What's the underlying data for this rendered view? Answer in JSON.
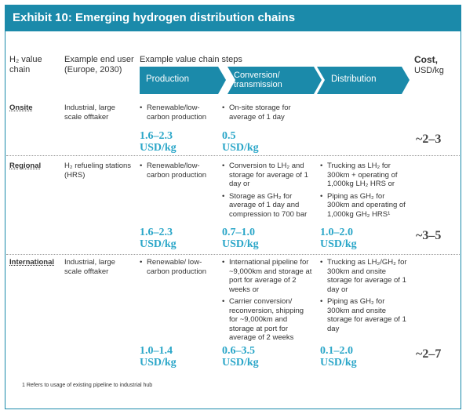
{
  "header": {
    "title": "Exhibit 10: Emerging hydrogen distribution chains"
  },
  "columns": {
    "h2_chain": "H₂ value chain",
    "end_user": "Example end user (Europe, 2030)",
    "steps_label": "Example value chain steps",
    "steps": [
      "Production",
      "Conversion/ transmission",
      "Distribution"
    ],
    "cost": "Cost,",
    "cost_unit": "USD/kg"
  },
  "rows": [
    {
      "name": "Onsite",
      "end_user": "Industrial, large scale offtaker",
      "production": {
        "bullets": [
          "Renewable/low-carbon production"
        ],
        "value": "1.6–2.3",
        "unit": "USD/kg"
      },
      "conversion": {
        "bullets": [
          "On-site storage for average of 1 day"
        ],
        "value": "0.5",
        "unit": "USD/kg"
      },
      "cost": "~2–3"
    },
    {
      "name": "Regional",
      "end_user": "H₂ refueling stations (HRS)",
      "production": {
        "bullets": [
          "Renewable/low-carbon production"
        ],
        "value": "1.6–2.3",
        "unit": "USD/kg"
      },
      "conversion": {
        "bullets": [
          "Conversion to LH₂ and storage for average of 1 day or",
          "Storage as GH₂ for average of 1 day and compression to 700 bar"
        ],
        "value": "0.7–1.0",
        "unit": "USD/kg"
      },
      "distribution": {
        "bullets": [
          "Trucking as LH₂ for 300km + operating of 1,000kg LH₂ HRS or",
          "Piping as GH₂ for 300km and operating of 1,000kg GH₂ HRS¹"
        ],
        "value": "1.0–2.0",
        "unit": "USD/kg"
      },
      "cost": "~3–5"
    },
    {
      "name": "International",
      "end_user": "Industrial, large scale offtaker",
      "production": {
        "bullets": [
          "Renewable/ low-carbon production"
        ],
        "value": "1.0–1.4",
        "unit": "USD/kg"
      },
      "conversion": {
        "bullets": [
          "International pipeline for ~9,000km and storage at port for average of 2 weeks or",
          "Carrier conversion/ reconversion, shipping for ~9,000km and storage at port for average of 2 weeks"
        ],
        "value": "0.6–3.5",
        "unit": "USD/kg"
      },
      "distribution": {
        "bullets": [
          "Trucking as LH₂/GH₂ for 300km and onsite storage for average of 1 day or",
          "Piping as GH₂ for 300km and onsite storage for average of 1 day"
        ],
        "value": "0.1–2.0",
        "unit": "USD/kg"
      },
      "cost": "~2–7"
    }
  ],
  "footnote": "1 Refers to usage of existing pipeline to industrial hub"
}
